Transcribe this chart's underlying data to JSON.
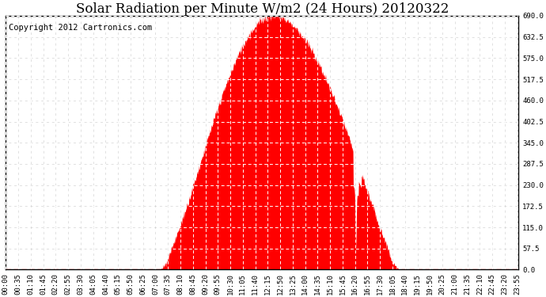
{
  "title": "Solar Radiation per Minute W/m2 (24 Hours) 20120322",
  "copyright": "Copyright 2012 Cartronics.com",
  "fill_color": "#FF0000",
  "bg_color": "#FFFFFF",
  "grid_color_minor": "#CCCCCC",
  "dashed_line_color": "#FF0000",
  "y_min": 0.0,
  "y_max": 690.0,
  "y_ticks": [
    0.0,
    57.5,
    115.0,
    172.5,
    230.0,
    287.5,
    345.0,
    402.5,
    460.0,
    517.5,
    575.0,
    632.5,
    690.0
  ],
  "total_minutes": 1440,
  "tick_interval": 35,
  "title_fontsize": 12,
  "copyright_fontsize": 7.5,
  "tick_fontsize": 6.5
}
